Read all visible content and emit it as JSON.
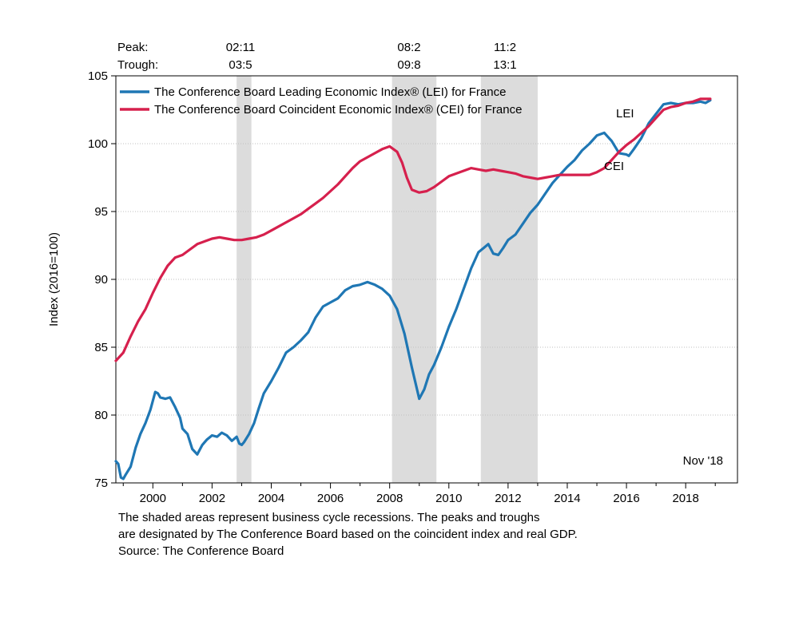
{
  "chart_data": {
    "type": "line",
    "ylabel": "Index (2016=100)",
    "ylim": [
      75,
      105
    ],
    "yticks": [
      75,
      80,
      85,
      90,
      95,
      100,
      105
    ],
    "xlim": [
      1998.75,
      2019.75
    ],
    "xticks": [
      2000,
      2002,
      2004,
      2006,
      2008,
      2010,
      2012,
      2014,
      2016,
      2018
    ],
    "grid": "horizontal dotted",
    "legend_position": "top-left",
    "date_label": "Nov '18",
    "peak_trough": {
      "peak_label": "Peak:",
      "trough_label": "Trough:",
      "peaks": [
        "02:11",
        "08:2",
        "11:2"
      ],
      "troughs": [
        "03:5",
        "09:8",
        "13:1"
      ]
    },
    "recessions": [
      [
        2002.83,
        2003.33
      ],
      [
        2008.08,
        2009.58
      ],
      [
        2011.08,
        2013.0
      ]
    ],
    "series": [
      {
        "name": "The Conference Board Leading Economic Index® (LEI) for France",
        "short_label": "LEI",
        "color": "#1f77b4",
        "x": [
          1998.75,
          1998.83,
          1998.92,
          1999.0,
          1999.08,
          1999.25,
          1999.42,
          1999.58,
          1999.75,
          1999.92,
          2000.08,
          2000.17,
          2000.25,
          2000.42,
          2000.58,
          2000.75,
          2000.92,
          2001.0,
          2001.17,
          2001.33,
          2001.5,
          2001.67,
          2001.83,
          2002.0,
          2002.17,
          2002.33,
          2002.5,
          2002.67,
          2002.83,
          2002.92,
          2003.0,
          2003.08,
          2003.25,
          2003.42,
          2003.58,
          2003.75,
          2004.0,
          2004.25,
          2004.5,
          2004.75,
          2005.0,
          2005.25,
          2005.5,
          2005.75,
          2006.0,
          2006.25,
          2006.5,
          2006.75,
          2007.0,
          2007.25,
          2007.5,
          2007.75,
          2008.0,
          2008.25,
          2008.5,
          2008.75,
          2009.0,
          2009.17,
          2009.33,
          2009.5,
          2009.75,
          2010.0,
          2010.25,
          2010.5,
          2010.75,
          2011.0,
          2011.17,
          2011.33,
          2011.5,
          2011.67,
          2011.83,
          2012.0,
          2012.25,
          2012.5,
          2012.75,
          2013.0,
          2013.25,
          2013.5,
          2013.75,
          2014.0,
          2014.25,
          2014.5,
          2014.75,
          2015.0,
          2015.25,
          2015.5,
          2015.75,
          2016.0,
          2016.08,
          2016.25,
          2016.5,
          2016.75,
          2017.0,
          2017.25,
          2017.5,
          2017.75,
          2018.0,
          2018.25,
          2018.5,
          2018.67,
          2018.83
        ],
        "y": [
          76.6,
          76.4,
          75.4,
          75.3,
          75.6,
          76.2,
          77.6,
          78.6,
          79.4,
          80.4,
          81.7,
          81.6,
          81.3,
          81.2,
          81.3,
          80.6,
          79.8,
          79.0,
          78.6,
          77.5,
          77.1,
          77.8,
          78.2,
          78.5,
          78.4,
          78.7,
          78.5,
          78.1,
          78.4,
          77.9,
          77.8,
          78.0,
          78.6,
          79.4,
          80.5,
          81.6,
          82.5,
          83.5,
          84.6,
          85.0,
          85.5,
          86.1,
          87.2,
          88.0,
          88.3,
          88.6,
          89.2,
          89.5,
          89.6,
          89.8,
          89.6,
          89.3,
          88.8,
          87.8,
          86.0,
          83.5,
          81.2,
          81.9,
          83.0,
          83.7,
          85.0,
          86.5,
          87.8,
          89.3,
          90.8,
          92.0,
          92.3,
          92.6,
          91.9,
          91.8,
          92.3,
          92.9,
          93.3,
          94.1,
          94.9,
          95.5,
          96.3,
          97.1,
          97.7,
          98.3,
          98.8,
          99.5,
          100.0,
          100.6,
          100.8,
          100.2,
          99.3,
          99.2,
          99.1,
          99.6,
          100.4,
          101.5,
          102.2,
          102.9,
          103.0,
          102.9,
          103.0,
          103.0,
          103.1,
          103.0,
          103.2
        ]
      },
      {
        "name": "The Conference Board Coincident Economic Index® (CEI) for France",
        "short_label": "CEI",
        "color": "#d6204d",
        "x": [
          1998.75,
          1999.0,
          1999.25,
          1999.5,
          1999.75,
          2000.0,
          2000.25,
          2000.5,
          2000.75,
          2001.0,
          2001.25,
          2001.5,
          2001.75,
          2002.0,
          2002.25,
          2002.5,
          2002.75,
          2003.0,
          2003.25,
          2003.5,
          2003.75,
          2004.0,
          2004.25,
          2004.5,
          2004.75,
          2005.0,
          2005.25,
          2005.5,
          2005.75,
          2006.0,
          2006.25,
          2006.5,
          2006.75,
          2007.0,
          2007.25,
          2007.5,
          2007.75,
          2008.0,
          2008.25,
          2008.42,
          2008.58,
          2008.75,
          2009.0,
          2009.25,
          2009.5,
          2009.75,
          2010.0,
          2010.25,
          2010.5,
          2010.75,
          2011.0,
          2011.25,
          2011.5,
          2011.75,
          2012.0,
          2012.25,
          2012.5,
          2012.75,
          2013.0,
          2013.25,
          2013.5,
          2013.75,
          2014.0,
          2014.25,
          2014.5,
          2014.75,
          2015.0,
          2015.25,
          2015.5,
          2015.75,
          2016.0,
          2016.25,
          2016.5,
          2016.75,
          2017.0,
          2017.25,
          2017.5,
          2017.75,
          2018.0,
          2018.25,
          2018.5,
          2018.83
        ],
        "y": [
          84.0,
          84.6,
          85.8,
          86.9,
          87.8,
          89.0,
          90.1,
          91.0,
          91.6,
          91.8,
          92.2,
          92.6,
          92.8,
          93.0,
          93.1,
          93.0,
          92.9,
          92.9,
          93.0,
          93.1,
          93.3,
          93.6,
          93.9,
          94.2,
          94.5,
          94.8,
          95.2,
          95.6,
          96.0,
          96.5,
          97.0,
          97.6,
          98.2,
          98.7,
          99.0,
          99.3,
          99.6,
          99.8,
          99.4,
          98.6,
          97.5,
          96.6,
          96.4,
          96.5,
          96.8,
          97.2,
          97.6,
          97.8,
          98.0,
          98.2,
          98.1,
          98.0,
          98.1,
          98.0,
          97.9,
          97.8,
          97.6,
          97.5,
          97.4,
          97.5,
          97.6,
          97.7,
          97.7,
          97.7,
          97.7,
          97.7,
          97.9,
          98.2,
          98.8,
          99.4,
          99.9,
          100.3,
          100.8,
          101.3,
          101.9,
          102.5,
          102.7,
          102.8,
          103.0,
          103.1,
          103.3,
          103.3
        ]
      }
    ]
  },
  "footnote": {
    "line1": "The shaded areas represent business cycle recessions. The peaks and troughs",
    "line2": "are designated by The Conference Board based on the coincident index and real GDP.",
    "line3": "Source: The Conference Board"
  }
}
